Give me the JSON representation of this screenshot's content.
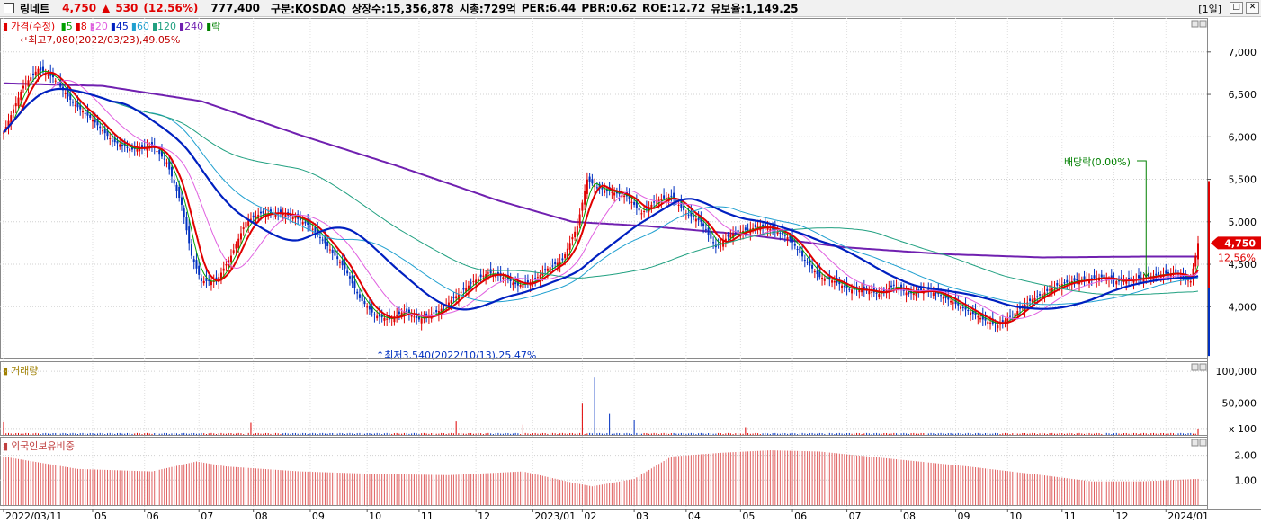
{
  "header": {
    "name": "링네트",
    "price": "4,750",
    "change_arrow": "▲",
    "change": "530",
    "change_pct": "(12.56%)",
    "volume": "777,400",
    "market": "구분:KOSDAQ",
    "listed": "상장수:15,356,878",
    "mktcap": "시총:729억",
    "per": "PER:6.44",
    "pbr": "PBR:0.62",
    "roe": "ROE:12.72",
    "reserve": "유보율:1,149.25",
    "period": "[1일]"
  },
  "legend": {
    "price_label": "가격(수정)",
    "ma": [
      {
        "label": "5",
        "color": "#00a000"
      },
      {
        "label": "8",
        "color": "#e00000"
      },
      {
        "label": "20",
        "color": "#e060e0"
      },
      {
        "label": "45",
        "color": "#0020c0"
      },
      {
        "label": "60",
        "color": "#20a0d0"
      },
      {
        "label": "120",
        "color": "#20a080"
      },
      {
        "label": "240",
        "color": "#7020b0"
      },
      {
        "label": "락",
        "color": "#008000"
      }
    ]
  },
  "annotations": {
    "high": "최고7,080(2022/03/23),49.05%",
    "low": "최저3,540(2022/10/13),25.47%",
    "dividend": "배당락(0.00%)"
  },
  "price_tag": {
    "value": "4,750",
    "pct": "12.56%"
  },
  "panels": {
    "volume_title": "거래량",
    "foreign_title": "외국인보유비중"
  },
  "colors": {
    "up": "#e00000",
    "down": "#0030c0",
    "ma5": "#00a000",
    "ma8": "#e00000",
    "ma20": "#e060e0",
    "ma45": "#0020c0",
    "ma60": "#20a0d0",
    "ma120": "#20a080",
    "ma240": "#7020b0"
  },
  "chart_data": {
    "type": "line",
    "price_axis_ticks": [
      "7,000",
      "6,500",
      "6,000",
      "5,500",
      "5,000",
      "4,500",
      "4,000"
    ],
    "price_axis_values": [
      7000,
      6500,
      6000,
      5500,
      5000,
      4500,
      4000
    ],
    "ylim": [
      3400,
      7400
    ],
    "volume_axis_ticks": [
      "100,000",
      "50,000",
      "x 100"
    ],
    "volume_axis_values": [
      100000,
      50000,
      10000
    ],
    "foreign_axis_ticks": [
      "2.00",
      "1.00"
    ],
    "foreign_axis_values": [
      2.0,
      1.0
    ],
    "x_tick_labels": [
      "2022/03/11",
      "05",
      "06",
      "07",
      "08",
      "09",
      "10",
      "11",
      "12",
      "2023/01",
      "02",
      "03",
      "04",
      "05",
      "06",
      "07",
      "08",
      "09",
      "10",
      "11",
      "12",
      "2024/01"
    ],
    "x_tick_index": [
      0,
      36,
      57,
      79,
      101,
      124,
      147,
      168,
      191,
      214,
      234,
      255,
      276,
      298,
      319,
      341,
      363,
      385,
      406,
      428,
      449,
      470
    ],
    "price_series": {
      "name": "가격(수정)",
      "index": [
        0,
        8,
        14,
        20,
        28,
        36,
        44,
        52,
        60,
        66,
        72,
        76,
        80,
        86,
        92,
        98,
        104,
        112,
        118,
        124,
        130,
        138,
        144,
        150,
        156,
        162,
        168,
        176,
        184,
        190,
        196,
        202,
        208,
        214,
        220,
        226,
        232,
        236,
        240,
        246,
        252,
        258,
        264,
        270,
        276,
        282,
        288,
        294,
        300,
        306,
        312,
        318,
        324,
        330,
        336,
        342,
        348,
        354,
        360,
        366,
        372,
        378,
        384,
        390,
        396,
        402,
        408,
        414,
        420,
        426,
        432,
        438,
        444,
        450,
        456,
        462,
        468,
        474,
        480,
        483
      ],
      "close": [
        6050,
        6600,
        6800,
        6700,
        6400,
        6200,
        5950,
        5850,
        5900,
        5700,
        5200,
        4600,
        4300,
        4300,
        4600,
        5000,
        5100,
        5100,
        5050,
        4950,
        4750,
        4450,
        4100,
        3900,
        3850,
        3950,
        3850,
        3950,
        4150,
        4300,
        4400,
        4350,
        4250,
        4300,
        4450,
        4550,
        4950,
        5500,
        5400,
        5350,
        5300,
        5100,
        5250,
        5300,
        5100,
        5000,
        4700,
        4850,
        4900,
        4950,
        4900,
        4800,
        4550,
        4350,
        4300,
        4200,
        4200,
        4150,
        4250,
        4150,
        4200,
        4150,
        4050,
        3950,
        3850,
        3780,
        3900,
        4050,
        4150,
        4250,
        4300,
        4320,
        4350,
        4300,
        4320,
        4350,
        4380,
        4400,
        4300,
        4750
      ]
    },
    "ma240_series": {
      "name": "240",
      "index": [
        0,
        40,
        80,
        120,
        160,
        200,
        230,
        260,
        300,
        340,
        380,
        420,
        460,
        483
      ],
      "values": [
        6630,
        6600,
        6420,
        6020,
        5650,
        5250,
        5000,
        4950,
        4850,
        4700,
        4620,
        4580,
        4590,
        4590
      ]
    },
    "volume_x100": {
      "index": [
        0,
        100,
        183,
        210,
        234,
        239,
        245,
        255,
        300,
        483
      ],
      "values": [
        200,
        190,
        210,
        160,
        490,
        900,
        330,
        240,
        120,
        100
      ]
    },
    "foreign_ratio": {
      "index": [
        0,
        30,
        60,
        78,
        90,
        120,
        150,
        180,
        210,
        230,
        238,
        255,
        270,
        290,
        310,
        330,
        360,
        390,
        420,
        440,
        460,
        483
      ],
      "values": [
        1.95,
        1.45,
        1.35,
        1.75,
        1.55,
        1.35,
        1.25,
        1.2,
        1.35,
        0.9,
        0.75,
        1.05,
        1.95,
        2.1,
        2.2,
        2.15,
        1.85,
        1.55,
        1.2,
        0.95,
        0.95,
        1.05
      ]
    }
  }
}
